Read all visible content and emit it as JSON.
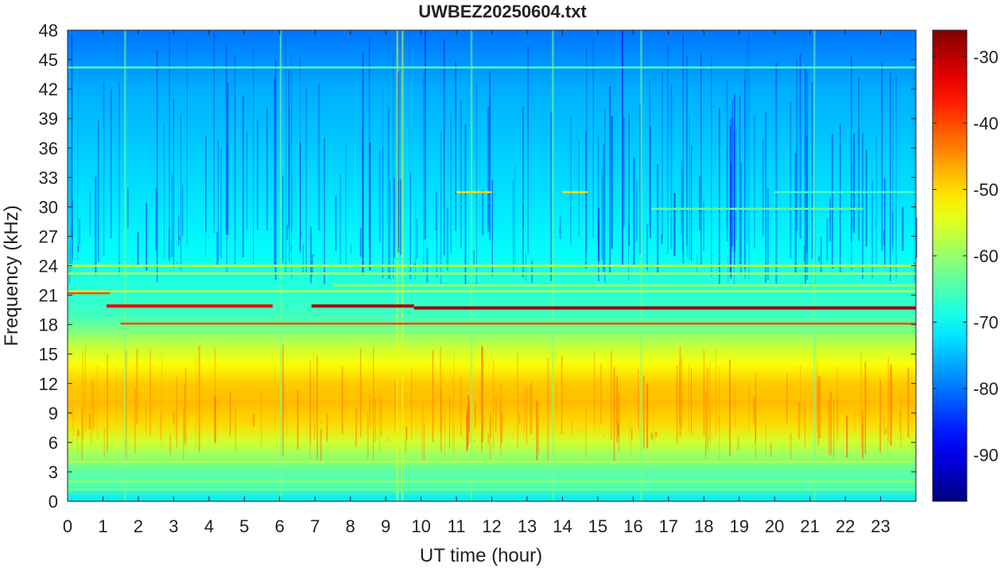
{
  "chart_data": {
    "type": "heatmap",
    "title": "UWBEZ20250604.txt",
    "xlabel": "UT time (hour)",
    "ylabel": "Frequency (kHz)",
    "xlim": [
      0,
      24
    ],
    "ylim": [
      0,
      48
    ],
    "x_ticks": [
      0,
      1,
      2,
      3,
      4,
      5,
      6,
      7,
      8,
      9,
      10,
      11,
      12,
      13,
      14,
      15,
      16,
      17,
      18,
      19,
      20,
      21,
      22,
      23
    ],
    "y_ticks": [
      0,
      3,
      6,
      9,
      12,
      15,
      18,
      21,
      24,
      27,
      30,
      33,
      36,
      39,
      42,
      45,
      48
    ],
    "colorbar": {
      "colormap": "jet",
      "range": [
        -97,
        -26
      ],
      "ticks": [
        -90,
        -80,
        -70,
        -60,
        -50,
        -40,
        -30
      ]
    },
    "background_profile": [
      {
        "f": 0,
        "db": -72
      },
      {
        "f": 1.5,
        "db": -65
      },
      {
        "f": 3,
        "db": -64
      },
      {
        "f": 4.5,
        "db": -60
      },
      {
        "f": 6,
        "db": -56
      },
      {
        "f": 8,
        "db": -50
      },
      {
        "f": 10,
        "db": -48
      },
      {
        "f": 12,
        "db": -49
      },
      {
        "f": 14,
        "db": -53
      },
      {
        "f": 16,
        "db": -57
      },
      {
        "f": 17.5,
        "db": -62
      },
      {
        "f": 19,
        "db": -66
      },
      {
        "f": 22,
        "db": -68
      },
      {
        "f": 25,
        "db": -70
      },
      {
        "f": 30,
        "db": -72
      },
      {
        "f": 36,
        "db": -74
      },
      {
        "f": 42,
        "db": -76
      },
      {
        "f": 48,
        "db": -80
      }
    ],
    "signal_lines": [
      {
        "f": 21.4,
        "t0": 0,
        "t1": 24,
        "db": -57
      },
      {
        "f": 21.2,
        "t0": 0,
        "t1": 1.2,
        "db": -40
      },
      {
        "f": 19.9,
        "t0": 1.1,
        "t1": 5.8,
        "db": -34
      },
      {
        "f": 19.9,
        "t0": 6.9,
        "t1": 9.8,
        "db": -29
      },
      {
        "f": 19.7,
        "t0": 9.8,
        "t1": 24,
        "db": -28
      },
      {
        "f": 18.1,
        "t0": 1.5,
        "t1": 24,
        "db": -40
      },
      {
        "f": 24.0,
        "t0": 0,
        "t1": 24,
        "db": -55
      },
      {
        "f": 23.2,
        "t0": 0,
        "t1": 24,
        "db": -57
      },
      {
        "f": 44.2,
        "t0": 0,
        "t1": 24,
        "db": -64
      },
      {
        "f": 4.0,
        "t0": 0,
        "t1": 24,
        "db": -58
      },
      {
        "f": 2.0,
        "t0": 0,
        "t1": 24,
        "db": -60
      },
      {
        "f": 1.2,
        "t0": 0,
        "t1": 24,
        "db": -62
      },
      {
        "f": 31.5,
        "t0": 11.0,
        "t1": 12.0,
        "db": -50
      },
      {
        "f": 31.5,
        "t0": 14.0,
        "t1": 14.7,
        "db": -50
      },
      {
        "f": 29.8,
        "t0": 16.5,
        "t1": 22.5,
        "db": -63
      },
      {
        "f": 31.5,
        "t0": 20.0,
        "t1": 24,
        "db": -66
      },
      {
        "f": 22.0,
        "t0": 7.5,
        "t1": 24,
        "db": -58
      }
    ],
    "vertical_bursts": [
      {
        "t": 9.3,
        "db": -52
      },
      {
        "t": 9.45,
        "db": -55
      },
      {
        "t": 1.6,
        "db": -62
      },
      {
        "t": 6.0,
        "db": -62
      },
      {
        "t": 11.4,
        "db": -62
      },
      {
        "t": 13.7,
        "db": -62
      },
      {
        "t": 16.2,
        "db": -62
      },
      {
        "t": 21.1,
        "db": -63
      }
    ]
  }
}
